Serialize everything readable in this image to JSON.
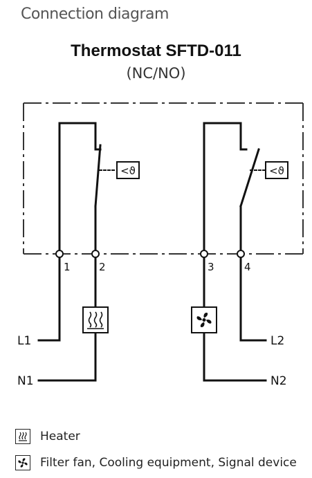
{
  "heading": "Connection diagram",
  "title": "Thermostat SFTD-011",
  "subtitle": "(NC/NO)",
  "terminals": {
    "t1": "1",
    "t2": "2",
    "t3": "3",
    "t4": "4"
  },
  "lines": {
    "l1": "L1",
    "n1": "N1",
    "l2": "L2",
    "n2": "N2"
  },
  "thermo_symbol": "<ϑ",
  "legend": {
    "heater": "Heater",
    "fan": "Filter fan, Cooling equipment, Signal device"
  }
}
